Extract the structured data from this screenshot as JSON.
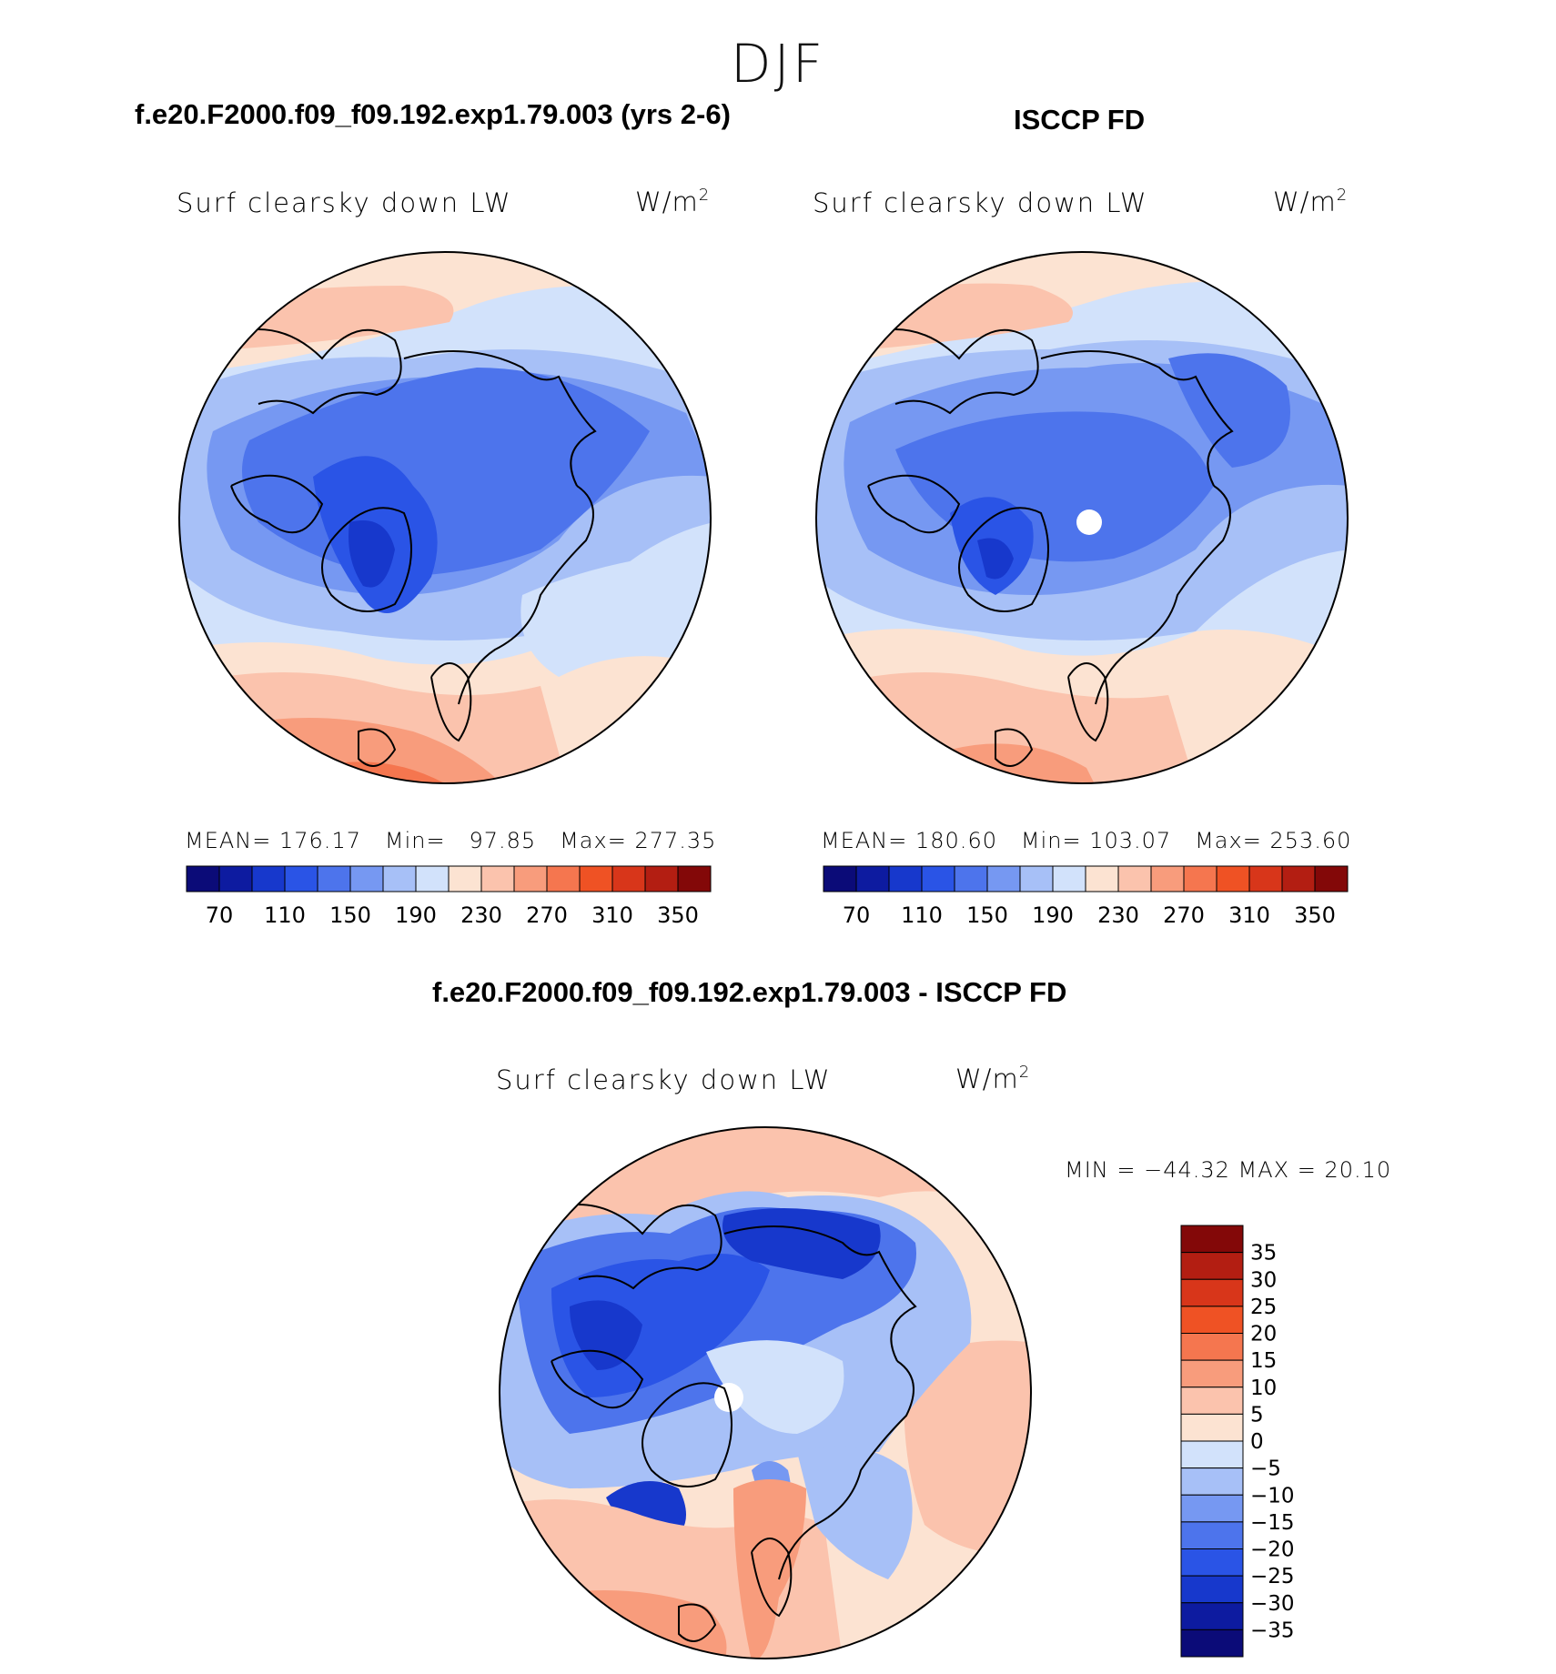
{
  "figure": {
    "season": "DJF",
    "diff_stats": "MIN = −44.32 MAX =   20.10"
  },
  "chart_data": [
    {
      "type": "heatmap",
      "projection": "north-polar-stereographic",
      "case_title": "f.e20.F2000.f09_f09.192.exp1.79.003 (yrs 2-6)",
      "variable": "Surf clearsky down LW",
      "units": "W/m",
      "units_exp": "2",
      "mean_label": "MEAN=",
      "mean": "176.17",
      "min_label": "Min=",
      "min": "97.85",
      "max_label": "Max=",
      "max": "277.35",
      "colorbar_labels": [
        "70",
        "110",
        "150",
        "190",
        "230",
        "270",
        "310",
        "350"
      ],
      "colorbar_colors": [
        "#0b0b78",
        "#0d1ba0",
        "#1738cc",
        "#2a54e6",
        "#4d74ec",
        "#7698f2",
        "#a7c0f7",
        "#d2e2fb",
        "#fce3d2",
        "#fbc3ad",
        "#f89c7c",
        "#f5764f",
        "#ef5224",
        "#d8361a",
        "#b31e12",
        "#830808"
      ]
    },
    {
      "type": "heatmap",
      "projection": "north-polar-stereographic",
      "case_title": "ISCCP FD",
      "variable": "Surf clearsky down LW",
      "units": "W/m",
      "units_exp": "2",
      "mean_label": "MEAN=",
      "mean": "180.60",
      "min_label": "Min=",
      "min": "103.07",
      "max_label": "Max=",
      "max": "253.60",
      "colorbar_labels": [
        "70",
        "110",
        "150",
        "190",
        "230",
        "270",
        "310",
        "350"
      ],
      "colorbar_colors": [
        "#0b0b78",
        "#0d1ba0",
        "#1738cc",
        "#2a54e6",
        "#4d74ec",
        "#7698f2",
        "#a7c0f7",
        "#d2e2fb",
        "#fce3d2",
        "#fbc3ad",
        "#f89c7c",
        "#f5764f",
        "#ef5224",
        "#d8361a",
        "#b31e12",
        "#830808"
      ]
    },
    {
      "type": "heatmap",
      "projection": "north-polar-stereographic",
      "case_title": "f.e20.F2000.f09_f09.192.exp1.79.003 - ISCCP FD",
      "variable": "Surf clearsky down LW",
      "units": "W/m",
      "units_exp": "2",
      "colorbar_labels": [
        "35",
        "30",
        "25",
        "20",
        "15",
        "10",
        "5",
        "0",
        "−5",
        "−10",
        "−15",
        "−20",
        "−25",
        "−30",
        "−35"
      ],
      "colorbar_colors": [
        "#830808",
        "#b31e12",
        "#d8361a",
        "#ef5224",
        "#f5764f",
        "#f89c7c",
        "#fbc3ad",
        "#fce3d2",
        "#d2e2fb",
        "#a7c0f7",
        "#7698f2",
        "#4d74ec",
        "#2a54e6",
        "#1738cc",
        "#0d1ba0",
        "#0b0b78"
      ]
    }
  ]
}
